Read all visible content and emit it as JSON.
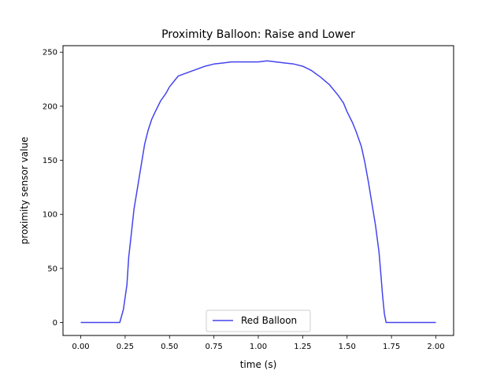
{
  "chart_data": {
    "type": "line",
    "title": "Proximity Balloon: Raise and Lower",
    "xlabel": "time (s)",
    "ylabel": "proximity sensor value",
    "xlim": [
      -0.1,
      2.1
    ],
    "ylim": [
      -12,
      256
    ],
    "x_ticks": [
      0.0,
      0.25,
      0.5,
      0.75,
      1.0,
      1.25,
      1.5,
      1.75,
      2.0
    ],
    "x_tick_labels": [
      "0.00",
      "0.25",
      "0.50",
      "0.75",
      "1.00",
      "1.25",
      "1.50",
      "1.75",
      "2.00"
    ],
    "y_ticks": [
      0,
      50,
      100,
      150,
      200,
      250
    ],
    "y_tick_labels": [
      "0",
      "50",
      "100",
      "150",
      "200",
      "250"
    ],
    "grid": false,
    "legend_position": "lower-center",
    "series": [
      {
        "name": "Red Balloon",
        "color": "#4444ee",
        "x": [
          0.0,
          0.05,
          0.1,
          0.15,
          0.2,
          0.22,
          0.24,
          0.26,
          0.27,
          0.28,
          0.3,
          0.32,
          0.34,
          0.36,
          0.38,
          0.4,
          0.42,
          0.45,
          0.48,
          0.5,
          0.53,
          0.55,
          0.6,
          0.65,
          0.7,
          0.75,
          0.8,
          0.85,
          0.9,
          0.95,
          1.0,
          1.05,
          1.1,
          1.15,
          1.2,
          1.25,
          1.3,
          1.35,
          1.4,
          1.45,
          1.48,
          1.5,
          1.53,
          1.55,
          1.58,
          1.6,
          1.62,
          1.64,
          1.66,
          1.68,
          1.69,
          1.7,
          1.71,
          1.72,
          1.75,
          1.8,
          1.85,
          1.9,
          1.95,
          2.0
        ],
        "values": [
          0,
          0,
          0,
          0,
          0,
          0,
          12,
          35,
          60,
          75,
          105,
          125,
          145,
          165,
          178,
          188,
          195,
          205,
          212,
          218,
          224,
          228,
          231,
          234,
          237,
          239,
          240,
          241,
          241,
          241,
          241,
          242,
          241,
          240,
          239,
          237,
          233,
          227,
          220,
          210,
          203,
          195,
          185,
          177,
          163,
          148,
          130,
          110,
          90,
          65,
          45,
          25,
          8,
          0,
          0,
          0,
          0,
          0,
          0,
          0
        ]
      }
    ]
  }
}
